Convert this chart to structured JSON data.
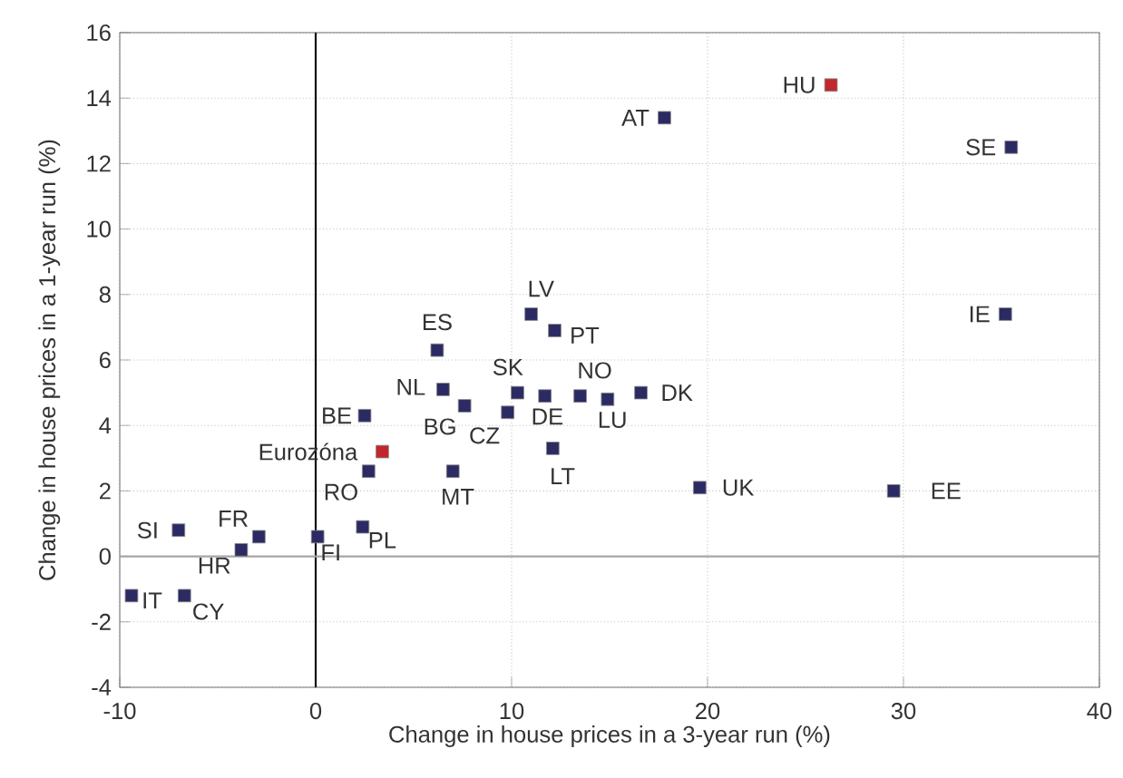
{
  "chart_data": {
    "type": "scatter",
    "xlabel": "Change in house prices in a 3-year run (%)",
    "ylabel": "Change in house prices in a 1-year run (%)",
    "xlim": [
      -10,
      40
    ],
    "xticks": [
      -10,
      0,
      10,
      20,
      30,
      40
    ],
    "ylim": [
      -4,
      16
    ],
    "yticks": [
      -4,
      -2,
      0,
      2,
      4,
      6,
      8,
      10,
      12,
      14,
      16
    ],
    "grid": true,
    "marker": "square",
    "series": [
      {
        "color": "#2b2a63",
        "x": [
          17.8,
          35.5,
          35.2,
          11.0,
          12.2,
          6.2,
          6.5,
          10.3,
          11.7,
          13.5,
          14.9,
          16.6,
          7.6,
          9.8,
          2.5,
          12.1,
          2.7,
          7.0,
          19.6,
          29.5,
          2.4,
          0.1,
          -2.9,
          -3.8,
          -7.0,
          -9.4,
          -6.7
        ],
        "values": [
          13.4,
          12.5,
          7.4,
          7.4,
          6.9,
          6.3,
          5.1,
          5.0,
          4.9,
          4.9,
          4.8,
          5.0,
          4.6,
          4.4,
          4.3,
          3.3,
          2.6,
          2.6,
          2.1,
          2.0,
          0.9,
          0.6,
          0.6,
          0.2,
          0.8,
          -1.2,
          -1.2
        ]
      },
      {
        "color": "#c0282d",
        "x": [
          26.3,
          3.4
        ],
        "values": [
          14.4,
          3.2
        ]
      }
    ],
    "ref_lines": [
      {
        "axis": "x",
        "value": 0,
        "color": "#000000"
      },
      {
        "axis": "y",
        "value": 0,
        "color": "#a6a6a6"
      }
    ],
    "annotations": [
      {
        "text": "AT",
        "x": 17.8,
        "y": 13.4
      },
      {
        "text": "SE",
        "x": 35.5,
        "y": 12.5
      },
      {
        "text": "IE",
        "x": 35.2,
        "y": 7.4
      },
      {
        "text": "LV",
        "x": 11.0,
        "y": 7.4
      },
      {
        "text": "PT",
        "x": 12.2,
        "y": 6.9
      },
      {
        "text": "ES",
        "x": 6.2,
        "y": 6.3
      },
      {
        "text": "NL",
        "x": 6.5,
        "y": 5.1
      },
      {
        "text": "SK",
        "x": 10.3,
        "y": 5.0
      },
      {
        "text": "DE",
        "x": 11.7,
        "y": 4.9
      },
      {
        "text": "NO",
        "x": 13.5,
        "y": 4.9
      },
      {
        "text": "LU",
        "x": 14.9,
        "y": 4.8
      },
      {
        "text": "DK",
        "x": 16.6,
        "y": 5.0
      },
      {
        "text": "BG",
        "x": 7.6,
        "y": 4.6
      },
      {
        "text": "CZ",
        "x": 9.8,
        "y": 4.4
      },
      {
        "text": "BE",
        "x": 2.5,
        "y": 4.3
      },
      {
        "text": "LT",
        "x": 12.1,
        "y": 3.3
      },
      {
        "text": "RO",
        "x": 2.7,
        "y": 2.6
      },
      {
        "text": "MT",
        "x": 7.0,
        "y": 2.6
      },
      {
        "text": "UK",
        "x": 19.6,
        "y": 2.1
      },
      {
        "text": "EE",
        "x": 29.5,
        "y": 2.0
      },
      {
        "text": "PL",
        "x": 2.4,
        "y": 0.9
      },
      {
        "text": "FI",
        "x": 0.1,
        "y": 0.6
      },
      {
        "text": "FR",
        "x": -2.9,
        "y": 0.6
      },
      {
        "text": "HR",
        "x": -3.8,
        "y": 0.2
      },
      {
        "text": "SI",
        "x": -7.0,
        "y": 0.8
      },
      {
        "text": "IT",
        "x": -9.4,
        "y": -1.2
      },
      {
        "text": "CY",
        "x": -6.7,
        "y": -1.2
      },
      {
        "text": "HU",
        "x": 26.3,
        "y": 14.4
      },
      {
        "text": "Eurozóna",
        "x": 3.4,
        "y": 3.2
      }
    ]
  }
}
